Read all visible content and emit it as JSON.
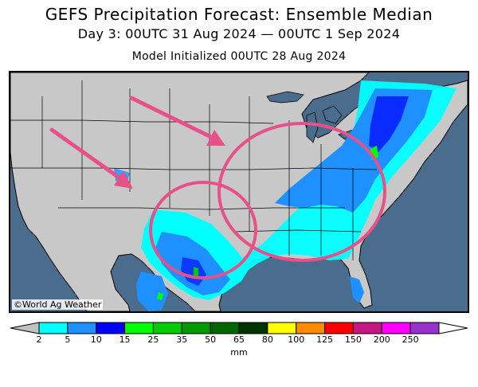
{
  "header": {
    "title": "GEFS Precipitation Forecast: Ensemble Median",
    "period": "Day 3: 00UTC 31 Aug 2024 — 00UTC 1 Sep 2024",
    "init": "Model Initialized 00UTC 28 Aug 2024"
  },
  "map": {
    "credit": "©World Ag Weather",
    "colors": {
      "ocean": "#4a6d8e",
      "land": "#c8c8c8",
      "border": "#000000",
      "annotation": "#e8508a"
    },
    "annotations": {
      "arrows": 2,
      "circles": 2
    }
  },
  "legend": {
    "unit": "mm",
    "ticks": [
      "2",
      "5",
      "10",
      "15",
      "25",
      "35",
      "50",
      "65",
      "80",
      "100",
      "125",
      "150",
      "200",
      "250"
    ],
    "colors": [
      "#00ffff",
      "#1e90ff",
      "#0000ff",
      "#00ff00",
      "#00cc00",
      "#009900",
      "#006600",
      "#003300",
      "#ffff00",
      "#ff8c00",
      "#ff0000",
      "#c71585",
      "#ff00ff",
      "#9932cc"
    ]
  }
}
